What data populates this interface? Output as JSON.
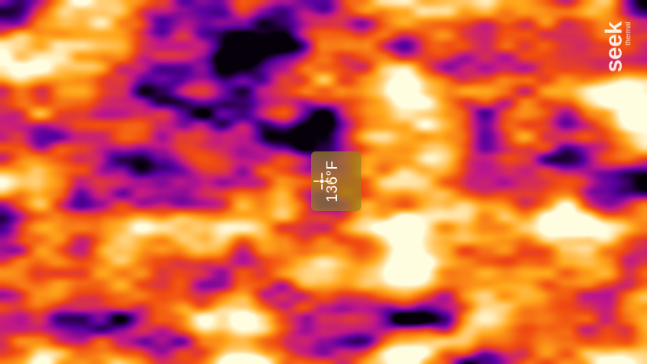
{
  "spot_meter": {
    "temperature": "136°F",
    "icon": "crosshair-icon"
  },
  "logo": {
    "wordmark": "seek",
    "subtext": "thermal"
  },
  "palette": {
    "cold": "#06000a",
    "cool": "#5a00a0",
    "magenta": "#c0178a",
    "warm": "#f04a10",
    "hot": "#ffa61a",
    "hottest": "#fffde0"
  }
}
